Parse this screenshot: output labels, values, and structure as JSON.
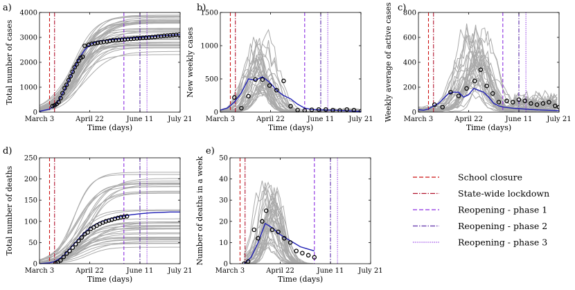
{
  "colors": {
    "red": "#cc1111",
    "darkred": "#b0102a",
    "purple1": "#8a2be2",
    "purple2": "#5b2aa8",
    "purple3": "#8a2be2",
    "model": "#1f1fb4",
    "ensemble": "#aaaaaa"
  },
  "events": {
    "school_closure": 10,
    "state_lockdown": 15,
    "phase1": 84,
    "phase2": 100,
    "phase3": 107
  },
  "legend": {
    "items": [
      {
        "label": "School closure",
        "style": "dashed",
        "color_key": "red"
      },
      {
        "label": "State-wide lockdown",
        "style": "dashdot",
        "color_key": "darkred"
      },
      {
        "label": "Reopening - phase 1",
        "style": "dashed",
        "color_key": "purple1"
      },
      {
        "label": "Reopening - phase 2",
        "style": "dashdot",
        "color_key": "purple2"
      },
      {
        "label": "Reopening - phase 3",
        "style": "dotted",
        "color_key": "purple3"
      }
    ]
  },
  "chart_data": [
    {
      "id": "a",
      "panel_label": "a)",
      "type": "line",
      "xlabel": "Time (days)",
      "ylabel": "Total number of cases",
      "xlim": [
        0,
        140
      ],
      "ylim": [
        0,
        4000
      ],
      "xticks": [
        {
          "v": 0,
          "label": "March 3"
        },
        {
          "v": 50,
          "label": "April 22"
        },
        {
          "v": 100,
          "label": "June 11"
        },
        {
          "v": 140,
          "label": "July 21"
        }
      ],
      "yticks": [
        0,
        1000,
        2000,
        3000,
        4000
      ],
      "model_x": [
        0,
        10,
        15,
        20,
        25,
        30,
        35,
        40,
        45,
        50,
        55,
        60,
        70,
        80,
        90,
        100,
        110,
        120,
        130,
        140
      ],
      "model_y": [
        30,
        120,
        250,
        520,
        900,
        1350,
        1800,
        2200,
        2500,
        2700,
        2800,
        2860,
        2900,
        2940,
        2970,
        3000,
        3030,
        3060,
        3090,
        3110
      ],
      "obs_x": [
        13,
        15,
        17,
        19,
        21,
        23,
        25,
        27,
        29,
        31,
        33,
        35,
        37,
        39,
        41,
        43,
        45,
        49,
        52,
        55,
        58,
        61,
        64,
        67,
        70,
        73,
        76,
        79,
        82,
        85,
        88,
        91,
        94,
        97,
        100,
        103,
        106,
        109,
        112,
        115,
        118,
        121,
        124,
        127,
        130,
        133,
        136,
        139
      ],
      "obs_y": [
        240,
        270,
        320,
        400,
        560,
        760,
        960,
        1100,
        1280,
        1440,
        1620,
        1800,
        1920,
        2060,
        2180,
        2220,
        2660,
        2700,
        2740,
        2760,
        2780,
        2800,
        2820,
        2840,
        2860,
        2880,
        2890,
        2900,
        2910,
        2920,
        2930,
        2940,
        2950,
        2960,
        2970,
        2980,
        2990,
        3000,
        3010,
        3020,
        3040,
        3050,
        3060,
        3070,
        3080,
        3090,
        3100,
        3110
      ],
      "ens_kind": "sigmoid",
      "ens_params": {
        "count": 38,
        "low": 2300,
        "high": 3900,
        "mid_low": 30,
        "mid_high": 46,
        "k_low": 0.07,
        "k_high": 0.11
      }
    },
    {
      "id": "b",
      "panel_label": "b)",
      "type": "line",
      "xlabel": "Time (days)",
      "ylabel": "New weekly cases",
      "xlim": [
        0,
        140
      ],
      "ylim": [
        0,
        1500
      ],
      "xticks": [
        {
          "v": 0,
          "label": "March 3"
        },
        {
          "v": 50,
          "label": "April 22"
        },
        {
          "v": 100,
          "label": "June 11"
        },
        {
          "v": 140,
          "label": "July 21"
        }
      ],
      "yticks": [
        0,
        500,
        1000,
        1500
      ],
      "model_x": [
        0,
        7,
        14,
        21,
        28,
        35,
        42,
        49,
        56,
        63,
        70,
        77,
        84,
        91,
        98,
        105,
        112,
        119,
        126,
        133,
        140
      ],
      "model_y": [
        30,
        60,
        150,
        290,
        500,
        480,
        530,
        450,
        330,
        250,
        200,
        120,
        60,
        40,
        35,
        30,
        30,
        25,
        20,
        15,
        10
      ],
      "obs_x": [
        14,
        21,
        28,
        35,
        42,
        49,
        56,
        63,
        70,
        77,
        84,
        91,
        98,
        105,
        112,
        119,
        126,
        133,
        140
      ],
      "obs_y": [
        220,
        60,
        240,
        490,
        490,
        400,
        330,
        470,
        90,
        30,
        25,
        35,
        40,
        40,
        30,
        25,
        40,
        30,
        15
      ],
      "ens_kind": "peak",
      "ens_params": {
        "count": 34,
        "peak_low": 300,
        "peak_high": 1050,
        "center_low": 33,
        "center_high": 50,
        "width_low": 10,
        "width_high": 18,
        "tail": 35
      }
    },
    {
      "id": "c",
      "panel_label": "c)",
      "type": "line",
      "xlabel": "Time (days)",
      "ylabel": "Weekly average of active cases",
      "xlim": [
        0,
        140
      ],
      "ylim": [
        0,
        800
      ],
      "xticks": [
        {
          "v": 0,
          "label": "March 3"
        },
        {
          "v": 50,
          "label": "April 22"
        },
        {
          "v": 100,
          "label": "June 11"
        },
        {
          "v": 140,
          "label": "July 21"
        }
      ],
      "yticks": [
        0,
        200,
        400,
        600,
        800
      ],
      "model_x": [
        0,
        5,
        10,
        15,
        20,
        25,
        30,
        35,
        40,
        45,
        50,
        55,
        60,
        65,
        70,
        75,
        80,
        85,
        90,
        95,
        100,
        110,
        120,
        130,
        140
      ],
      "model_y": [
        20,
        15,
        25,
        50,
        70,
        110,
        150,
        160,
        160,
        120,
        140,
        190,
        175,
        160,
        120,
        70,
        50,
        40,
        35,
        30,
        28,
        22,
        18,
        15,
        12
      ],
      "obs_x": [
        16,
        24,
        32,
        40,
        48,
        56,
        62,
        68,
        74,
        80,
        88,
        94,
        100,
        106,
        112,
        118,
        124,
        130,
        136,
        140
      ],
      "obs_y": [
        60,
        40,
        160,
        130,
        190,
        250,
        340,
        210,
        150,
        80,
        90,
        80,
        100,
        90,
        70,
        60,
        70,
        80,
        50,
        40
      ],
      "ens_kind": "peak",
      "ens_params": {
        "count": 34,
        "peak_low": 120,
        "peak_high": 640,
        "center_low": 45,
        "center_high": 68,
        "width_low": 12,
        "width_high": 22,
        "tail": 110
      }
    },
    {
      "id": "d",
      "panel_label": "d)",
      "type": "line",
      "xlabel": "Time (days)",
      "ylabel": "Total number of deaths",
      "xlim": [
        0,
        140
      ],
      "ylim": [
        0,
        250
      ],
      "xticks": [
        {
          "v": 0,
          "label": "March 3"
        },
        {
          "v": 50,
          "label": "April 22"
        },
        {
          "v": 100,
          "label": "June 11"
        },
        {
          "v": 140,
          "label": "July 21"
        }
      ],
      "yticks": [
        0,
        50,
        100,
        150,
        200,
        250
      ],
      "model_x": [
        0,
        10,
        15,
        20,
        25,
        30,
        35,
        40,
        45,
        50,
        55,
        60,
        70,
        80,
        90,
        100,
        110,
        120,
        130,
        140
      ],
      "model_y": [
        0,
        2,
        5,
        12,
        22,
        35,
        48,
        62,
        74,
        84,
        92,
        98,
        106,
        111,
        115,
        118,
        120,
        121,
        122,
        122
      ],
      "obs_x": [
        16,
        18,
        21,
        24,
        27,
        30,
        33,
        36,
        39,
        42,
        45,
        48,
        51,
        54,
        57,
        60,
        63,
        66,
        69,
        72,
        75,
        78,
        81,
        84,
        87
      ],
      "obs_y": [
        1,
        3,
        8,
        16,
        24,
        30,
        38,
        46,
        54,
        62,
        70,
        74,
        82,
        86,
        90,
        94,
        97,
        100,
        102,
        104,
        106,
        108,
        110,
        111,
        112
      ],
      "ens_kind": "sigmoid",
      "ens_params": {
        "count": 38,
        "low": 35,
        "high": 220,
        "mid_low": 33,
        "mid_high": 52,
        "k_low": 0.07,
        "k_high": 0.12
      }
    },
    {
      "id": "e",
      "panel_label": "e)",
      "type": "line",
      "xlabel": "Time (days)",
      "ylabel": "Number of deaths in a week",
      "xlim": [
        0,
        140
      ],
      "ylim": [
        0,
        50
      ],
      "xticks": [
        {
          "v": 0,
          "label": "March 3"
        },
        {
          "v": 50,
          "label": "April 22"
        },
        {
          "v": 100,
          "label": "June 11"
        },
        {
          "v": 140,
          "label": "July 21"
        }
      ],
      "yticks": [
        0,
        10,
        20,
        30,
        40,
        50
      ],
      "model_x": [
        14,
        21,
        28,
        35,
        42,
        49,
        56,
        63,
        70,
        77,
        84
      ],
      "model_y": [
        0,
        3,
        10,
        19,
        17,
        14,
        12,
        10,
        8,
        7,
        6
      ],
      "obs_x": [
        14,
        18,
        24,
        28,
        32,
        36,
        42,
        48,
        54,
        60,
        66,
        72,
        78,
        84
      ],
      "obs_y": [
        0,
        1,
        16,
        12,
        20,
        25,
        16,
        15,
        12,
        10,
        6,
        5,
        4,
        3
      ],
      "ens_kind": "peak",
      "ens_params": {
        "count": 34,
        "peak_low": 8,
        "peak_high": 38,
        "center_low": 30,
        "center_high": 48,
        "width_low": 8,
        "width_high": 16,
        "tail": 0,
        "end": 84
      }
    }
  ]
}
